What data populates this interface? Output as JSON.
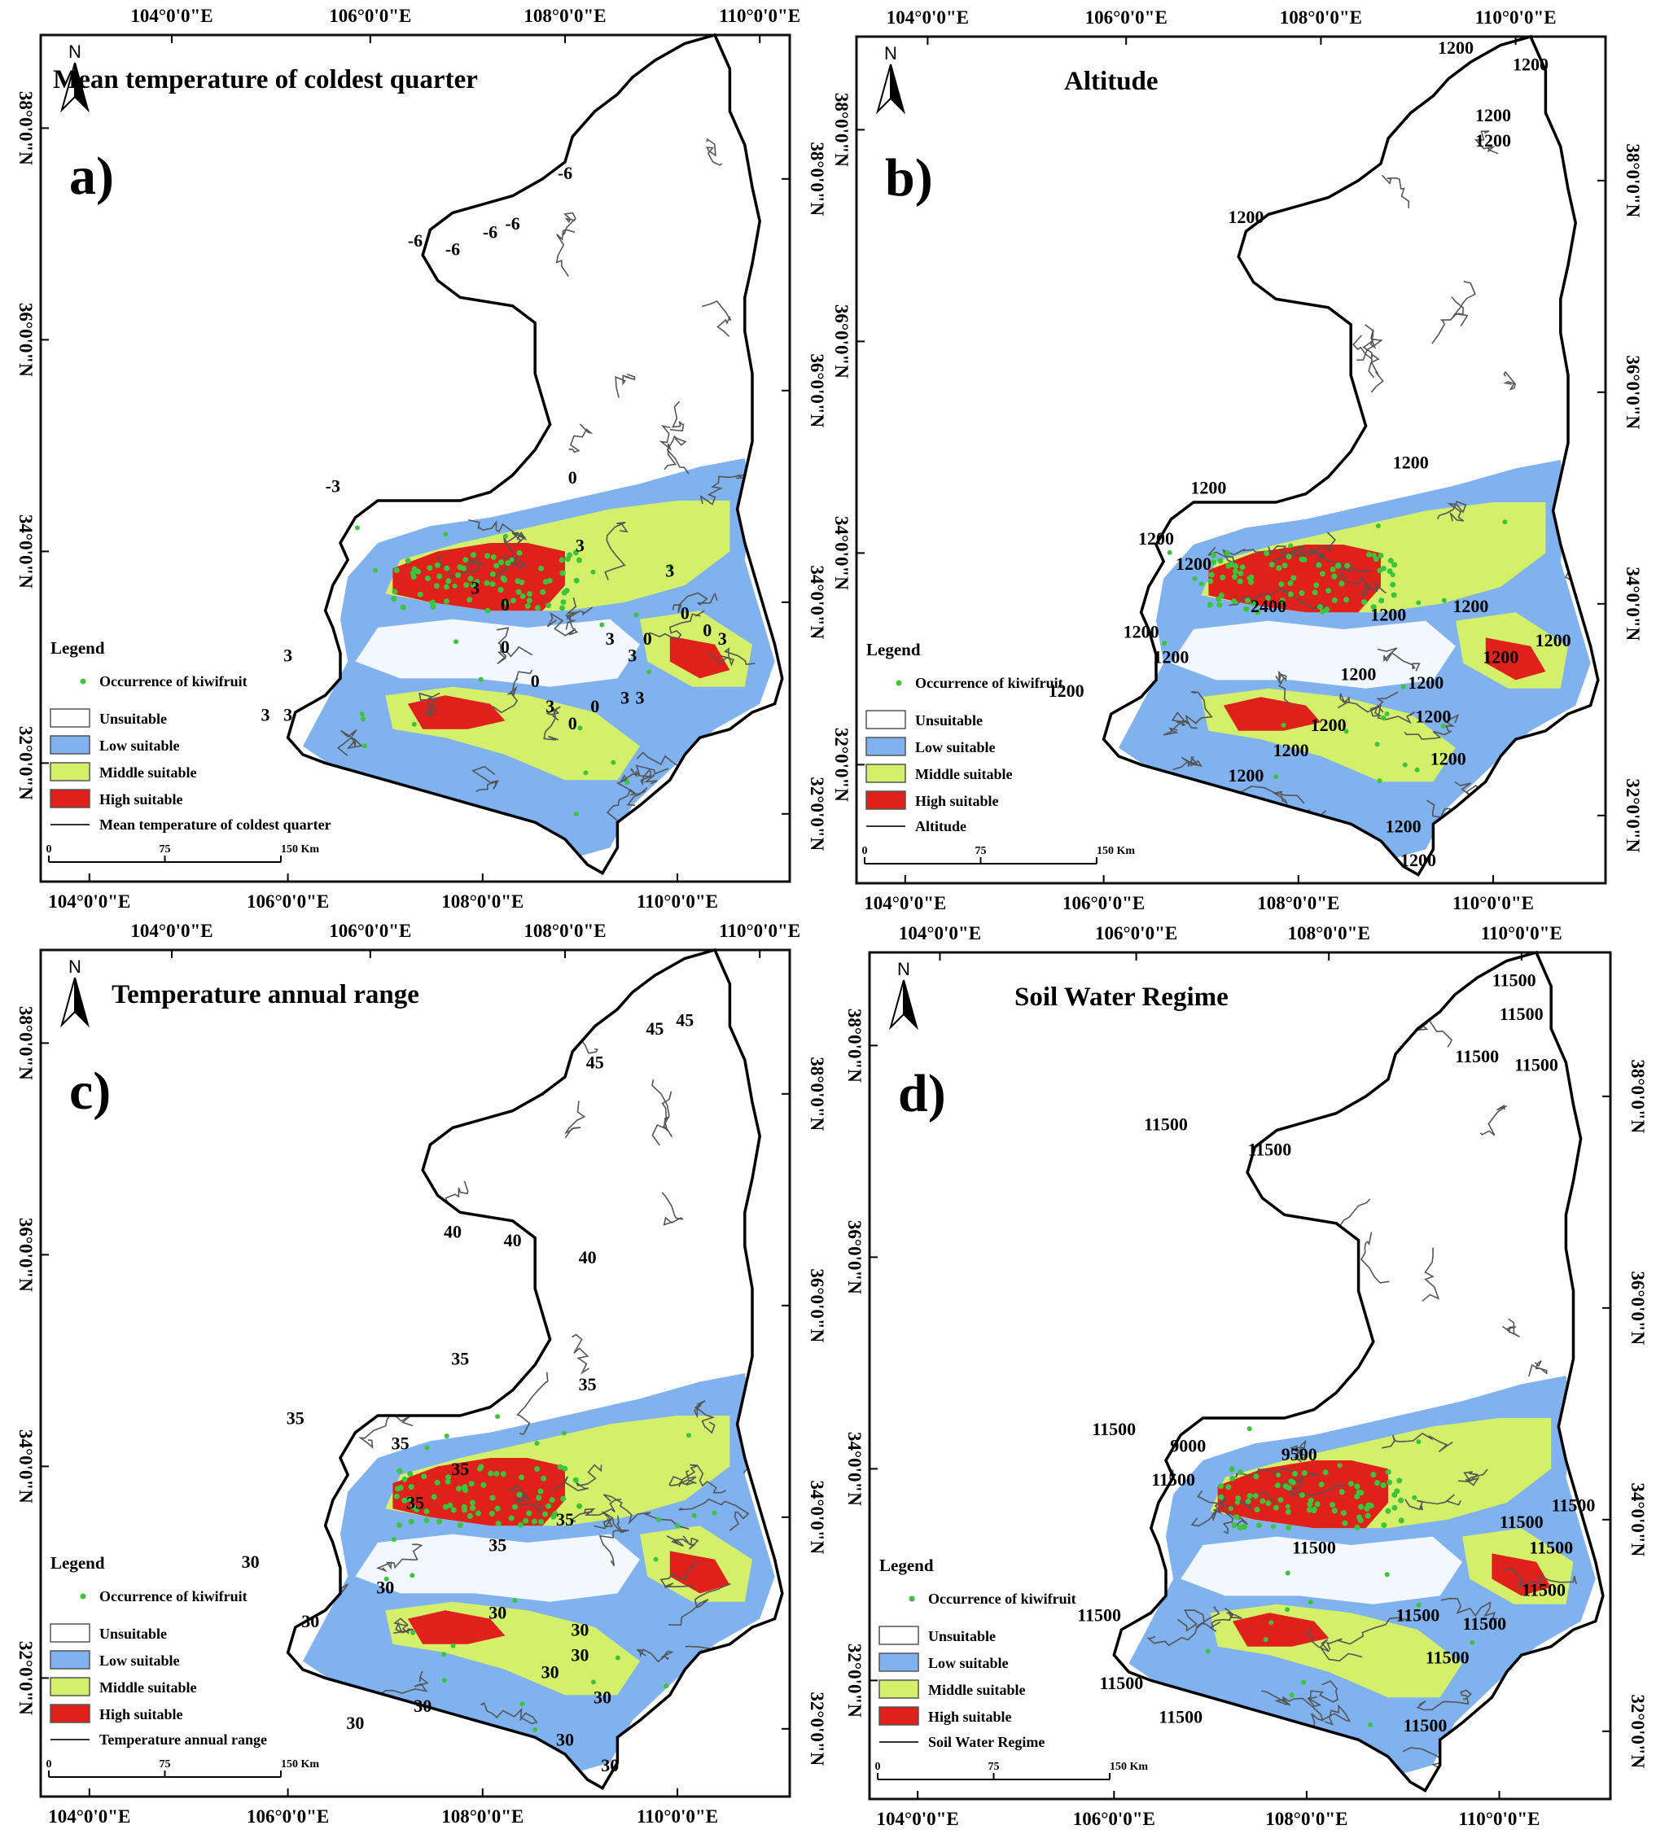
{
  "legend_common": {
    "heading": "Legend",
    "occurrence": "Occurrence of kiwifruit",
    "classes": [
      {
        "label": "Unsuitable",
        "color": "#ffffff"
      },
      {
        "label": "Low suitable",
        "color": "#7fb2ee"
      },
      {
        "label": "Middle suitable",
        "color": "#d4ef6a"
      },
      {
        "label": "High suitable",
        "color": "#e0201a"
      }
    ],
    "occurrence_color": "#3cc43c"
  },
  "scale": {
    "ticks": [
      "0",
      "75",
      "150 Km"
    ]
  },
  "north": "N",
  "lon_ticks": [
    "104°0'0\"E",
    "106°0'0\"E",
    "108°0'0\"E",
    "110°0'0\"E"
  ],
  "lat_ticks": [
    "38°0'0\"N",
    "36°0'0\"N",
    "34°0'0\"N",
    "32°0'0\"N"
  ],
  "panels": [
    {
      "id": "a",
      "letter": "a)",
      "title": "Mean temperature of coldest quarter",
      "contour_label": "Mean temperature of coldest quarter",
      "contour_values": [
        "-6",
        "-6",
        "-6",
        "-6",
        "-6",
        "-3",
        "0",
        "3",
        "3",
        "0",
        "3",
        "0",
        "0",
        "3",
        "0",
        "3",
        "3",
        "0",
        "0",
        "3",
        "0",
        "3",
        "3",
        "0",
        "3",
        "3",
        "3"
      ]
    },
    {
      "id": "b",
      "letter": "b)",
      "title": "Altitude",
      "contour_label": "Altitude",
      "contour_values": [
        "1200",
        "1200",
        "1200",
        "1200",
        "1200",
        "1200",
        "1200",
        "1200",
        "1200",
        "2400",
        "1200",
        "1200",
        "1200",
        "1200",
        "1200",
        "1200",
        "1200",
        "1200",
        "1200",
        "1200",
        "1200",
        "1200",
        "1200",
        "1200",
        "1200",
        "1200"
      ]
    },
    {
      "id": "c",
      "letter": "c)",
      "title": "Temperature annual range",
      "contour_label": "Temperature annual range",
      "contour_values": [
        "45",
        "45",
        "45",
        "40",
        "40",
        "40",
        "35",
        "35",
        "35",
        "35",
        "35",
        "35",
        "35",
        "35",
        "30",
        "30",
        "30",
        "30",
        "30",
        "30",
        "30",
        "30",
        "30",
        "30",
        "30",
        "30"
      ]
    },
    {
      "id": "d",
      "letter": "d)",
      "title": "Soil Water Regime",
      "contour_label": "Soil Water Regime",
      "contour_values": [
        "11500",
        "11500",
        "11500",
        "11500",
        "11500",
        "11500",
        "11500",
        "9000",
        "9500",
        "11500",
        "11500",
        "11500",
        "11500",
        "11500",
        "11500",
        "11500",
        "11500",
        "11500",
        "11500",
        "11500",
        "11500",
        "11500"
      ]
    }
  ]
}
